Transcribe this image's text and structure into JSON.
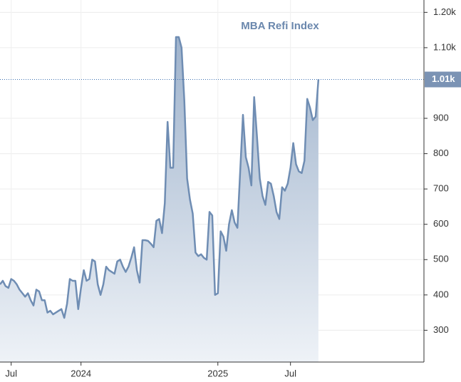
{
  "chart_data": {
    "type": "area",
    "categories": [
      null,
      null,
      null,
      null,
      "Jul",
      null,
      null,
      null,
      null,
      null,
      null,
      null,
      null,
      null,
      null,
      null,
      null,
      null,
      null,
      null,
      null,
      null,
      null,
      null,
      null,
      null,
      null,
      null,
      null,
      "2024",
      null,
      null,
      null,
      null,
      null,
      null,
      null,
      null,
      null,
      null,
      null,
      null,
      null,
      null,
      null,
      null,
      null,
      null,
      null,
      null,
      null,
      null,
      null,
      null,
      null,
      null,
      null,
      null,
      null,
      null,
      null,
      null,
      null,
      null,
      null,
      null,
      null,
      null,
      null,
      null,
      null,
      null,
      null,
      null,
      null,
      null,
      null,
      null,
      "2025",
      null,
      null,
      null,
      null,
      null,
      null,
      null,
      null,
      null,
      null,
      null,
      null,
      null,
      null,
      null,
      null,
      null,
      null,
      null,
      null,
      null,
      null,
      null,
      null,
      null,
      "Jul",
      null,
      null,
      null,
      null,
      null,
      null,
      null,
      null,
      null,
      null
    ],
    "series": [
      {
        "name": "MBA Refi Index",
        "color": "#6f8db3",
        "values": [
          430,
          440,
          425,
          420,
          445,
          440,
          430,
          415,
          405,
          395,
          405,
          385,
          370,
          415,
          410,
          385,
          385,
          350,
          355,
          345,
          350,
          355,
          360,
          335,
          375,
          445,
          440,
          440,
          360,
          420,
          470,
          440,
          445,
          500,
          495,
          430,
          400,
          430,
          480,
          470,
          465,
          460,
          495,
          500,
          480,
          465,
          480,
          505,
          535,
          470,
          435,
          555,
          555,
          553,
          545,
          535,
          610,
          615,
          575,
          660,
          890,
          760,
          760,
          1130,
          1130,
          1100,
          950,
          730,
          670,
          630,
          520,
          510,
          515,
          505,
          500,
          635,
          625,
          400,
          405,
          580,
          565,
          525,
          600,
          640,
          605,
          590,
          750,
          910,
          790,
          760,
          710,
          960,
          850,
          730,
          680,
          655,
          720,
          715,
          680,
          635,
          615,
          705,
          695,
          715,
          760,
          830,
          770,
          750,
          745,
          780,
          955,
          930,
          895,
          905,
          1010
        ]
      }
    ],
    "price_line": {
      "value": 1010,
      "label": "1.01k"
    },
    "ylim": [
      210,
      1235
    ],
    "yticks": [
      300,
      400,
      500,
      600,
      700,
      800,
      900,
      {
        "value": 1100,
        "label": "1.10k"
      },
      {
        "value": 1200,
        "label": "1.20k"
      }
    ],
    "grid": true
  }
}
